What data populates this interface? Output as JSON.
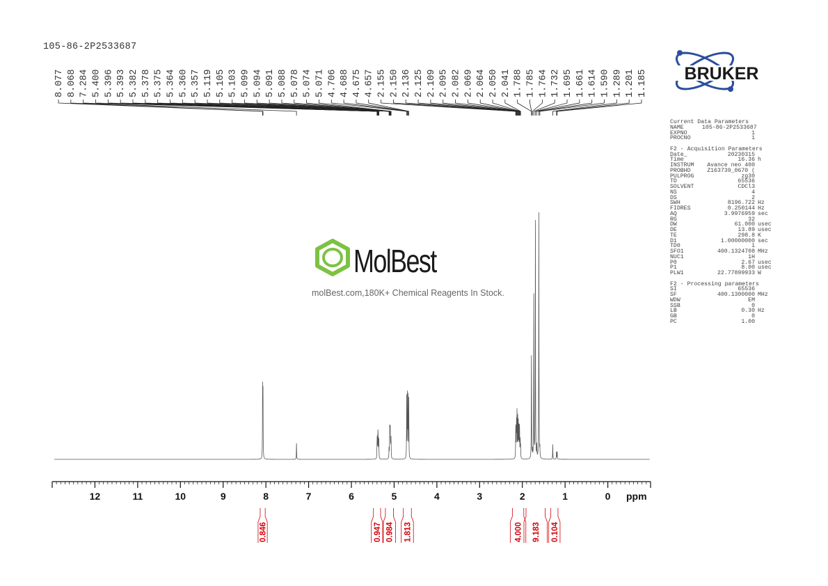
{
  "sample_id": "105-86-2P2533687",
  "logo": {
    "brand": "BRUKER"
  },
  "watermark": {
    "name": "MolBest",
    "tagline": "molBest.com,180K+ Chemical Reagents In Stock.",
    "color": "#7dc242"
  },
  "parameters": [
    {
      "title": "Current Data Parameters",
      "rows": [
        [
          "NAME",
          "105-86-2P2533687",
          ""
        ],
        [
          "EXPNO",
          "1",
          ""
        ],
        [
          "PROCNO",
          "1",
          ""
        ]
      ]
    },
    {
      "title": "F2 - Acquisition Parameters",
      "rows": [
        [
          "Date_",
          "20230315",
          ""
        ],
        [
          "Time",
          "16.36",
          "h"
        ],
        [
          "INSTRUM",
          "Avance neo 400",
          ""
        ],
        [
          "PROBHD",
          "Z163739_0670 (",
          ""
        ],
        [
          "PULPROG",
          "zg30",
          ""
        ],
        [
          "TD",
          "65536",
          ""
        ],
        [
          "SOLVENT",
          "CDCl3",
          ""
        ],
        [
          "NS",
          "4",
          ""
        ],
        [
          "DS",
          "2",
          ""
        ],
        [
          "SWH",
          "8196.722",
          "Hz"
        ],
        [
          "FIDRES",
          "0.250144",
          "Hz"
        ],
        [
          "AQ",
          "3.9976959",
          "sec"
        ],
        [
          "RG",
          "32",
          ""
        ],
        [
          "DW",
          "61.000",
          "usec"
        ],
        [
          "DE",
          "13.89",
          "usec"
        ],
        [
          "TE",
          "298.8",
          "K"
        ],
        [
          "D1",
          "1.00000000",
          "sec"
        ],
        [
          "TD0",
          "1",
          ""
        ],
        [
          "SFO1",
          "400.1324708",
          "MHz"
        ],
        [
          "NUC1",
          "1H",
          ""
        ],
        [
          "P0",
          "2.67",
          "usec"
        ],
        [
          "P1",
          "8.00",
          "usec"
        ],
        [
          "PLW1",
          "22.77899933",
          "W"
        ]
      ]
    },
    {
      "title": "F2 - Processing parameters",
      "rows": [
        [
          "SI",
          "65536",
          ""
        ],
        [
          "SF",
          "400.1300000",
          "MHz"
        ],
        [
          "WDW",
          "EM",
          ""
        ],
        [
          "SSB",
          "0",
          ""
        ],
        [
          "LB",
          "0.30",
          "Hz"
        ],
        [
          "GB",
          "0",
          ""
        ],
        [
          "PC",
          "1.00",
          ""
        ]
      ]
    }
  ],
  "chart_data": {
    "type": "line",
    "subtype": "1H NMR spectrum",
    "xlabel": "ppm",
    "xlim": [
      13,
      -1
    ],
    "x_ticks": [
      "12",
      "11",
      "10",
      "9",
      "8",
      "7",
      "6",
      "5",
      "4",
      "3",
      "2",
      "1",
      "0"
    ],
    "grid": false,
    "line_color": "#555555",
    "integral_color": "#d4000a",
    "peak_labels": [
      "8.077",
      "8.068",
      "7.284",
      "5.400",
      "5.396",
      "5.393",
      "5.382",
      "5.378",
      "5.375",
      "5.364",
      "5.360",
      "5.357",
      "5.119",
      "5.105",
      "5.103",
      "5.099",
      "5.094",
      "5.091",
      "5.088",
      "5.078",
      "5.074",
      "5.071",
      "4.706",
      "4.688",
      "4.675",
      "4.657",
      "2.155",
      "2.150",
      "2.136",
      "2.125",
      "2.109",
      "2.095",
      "2.082",
      "2.069",
      "2.064",
      "2.050",
      "2.041",
      "1.788",
      "1.785",
      "1.764",
      "1.732",
      "1.695",
      "1.661",
      "1.614",
      "1.590",
      "1.289",
      "1.201",
      "1.185"
    ],
    "peaks_relative_intensity": [
      28,
      26,
      6.5,
      4,
      4,
      5,
      5,
      6,
      5,
      4,
      4,
      4,
      4,
      5,
      6,
      6,
      5,
      5,
      6,
      5,
      4,
      4,
      25,
      25,
      24,
      24,
      8,
      10,
      14,
      18,
      16,
      14,
      12,
      10,
      8,
      7,
      5,
      37,
      8,
      3,
      66,
      96,
      5,
      100,
      4,
      6,
      3,
      3
    ],
    "integrals": [
      {
        "value": "0.846",
        "from": 8.15,
        "to": 8.0
      },
      {
        "value": "0.947",
        "from": 5.5,
        "to": 5.3
      },
      {
        "value": "0.984",
        "from": 5.22,
        "to": 5.0
      },
      {
        "value": "1.813",
        "from": 4.8,
        "to": 4.58
      },
      {
        "value": "4.000",
        "from": 2.25,
        "to": 1.95
      },
      {
        "value": "9.183",
        "from": 1.93,
        "to": 1.45
      },
      {
        "value": "0.104",
        "from": 1.35,
        "to": 1.15
      }
    ]
  }
}
